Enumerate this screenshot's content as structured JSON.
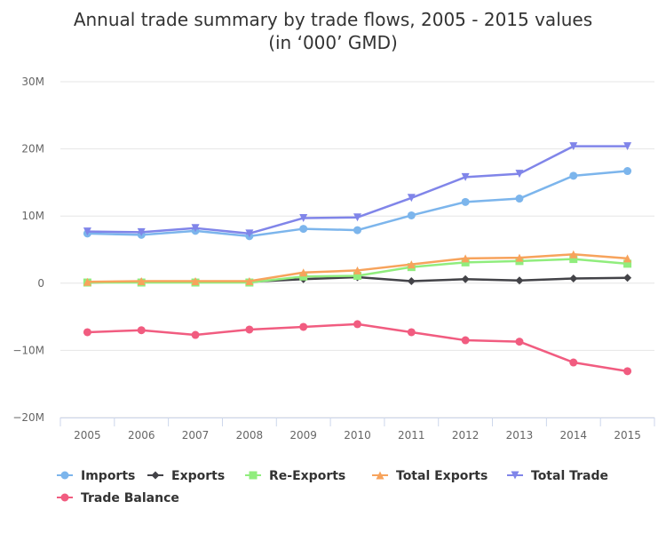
{
  "chart_data": {
    "type": "line",
    "title": "Annual trade summary by trade flows, 2005 - 2015 values",
    "subtitle": "(in ‘000’ GMD)",
    "categories": [
      "2005",
      "2006",
      "2007",
      "2008",
      "2009",
      "2010",
      "2011",
      "2012",
      "2013",
      "2014",
      "2015"
    ],
    "yticks": [
      {
        "value": 30,
        "label": "30M"
      },
      {
        "value": 20,
        "label": "20M"
      },
      {
        "value": 10,
        "label": "10M"
      },
      {
        "value": 0,
        "label": "0"
      },
      {
        "value": -10,
        "label": "−10M"
      },
      {
        "value": -20,
        "label": "−20M"
      }
    ],
    "ylim": [
      -20,
      30
    ],
    "yunit": "M",
    "grid": true,
    "legend_position": "bottom-left",
    "series": [
      {
        "name": "Imports",
        "color": "#7cb5ec",
        "marker": "circle",
        "values": [
          7.4,
          7.2,
          7.8,
          7.0,
          8.1,
          7.9,
          10.1,
          12.1,
          12.6,
          16.0,
          16.7
        ]
      },
      {
        "name": "Exports",
        "color": "#434348",
        "marker": "diamond",
        "values": [
          0.1,
          0.2,
          0.2,
          0.2,
          0.6,
          0.9,
          0.3,
          0.6,
          0.4,
          0.7,
          0.8
        ]
      },
      {
        "name": "Re-Exports",
        "color": "#90ed7d",
        "marker": "square",
        "values": [
          0.1,
          0.1,
          0.1,
          0.1,
          1.0,
          1.1,
          2.4,
          3.1,
          3.3,
          3.6,
          2.9
        ]
      },
      {
        "name": "Total Exports",
        "color": "#f7a35c",
        "marker": "triangle",
        "values": [
          0.2,
          0.3,
          0.3,
          0.3,
          1.6,
          1.9,
          2.8,
          3.7,
          3.8,
          4.3,
          3.7
        ]
      },
      {
        "name": "Total Trade",
        "color": "#8085e9",
        "marker": "triangle-down",
        "values": [
          7.7,
          7.6,
          8.2,
          7.4,
          9.7,
          9.8,
          12.7,
          15.8,
          16.3,
          20.4,
          20.4
        ]
      },
      {
        "name": "Trade Balance",
        "color": "#f15c80",
        "marker": "circle",
        "values": [
          -7.3,
          -7.0,
          -7.7,
          -6.9,
          -6.5,
          -6.1,
          -7.3,
          -8.5,
          -8.7,
          -11.8,
          -13.1
        ]
      }
    ]
  }
}
